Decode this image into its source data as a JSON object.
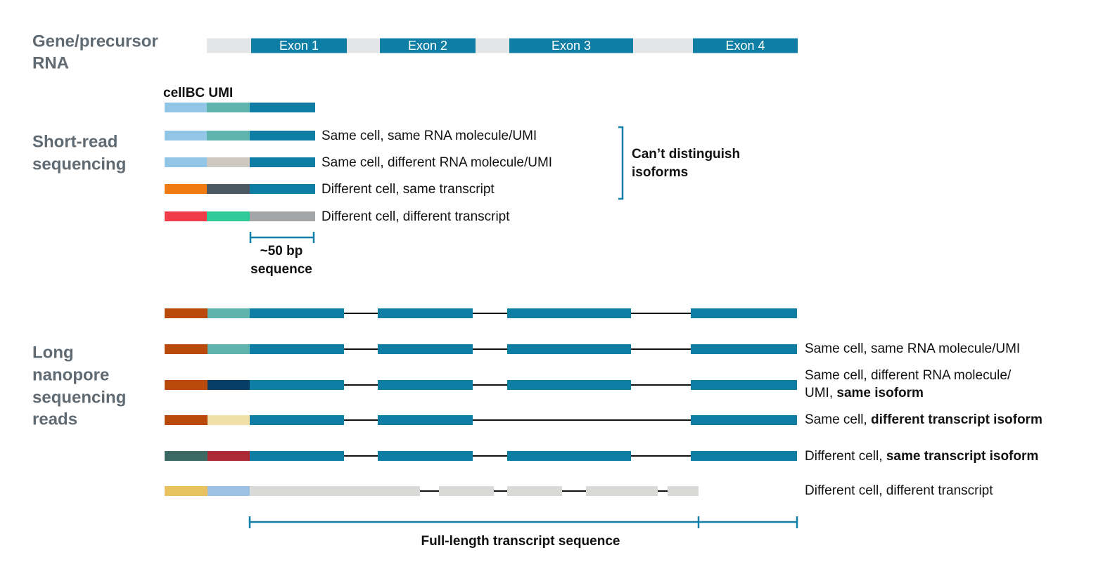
{
  "gene": {
    "title": [
      "Gene/precursor",
      "RNA"
    ],
    "exons": [
      "Exon 1",
      "Exon 2",
      "Exon 3",
      "Exon 4"
    ]
  },
  "short_read": {
    "title": [
      "Short-read",
      "sequencing"
    ],
    "header": "cellBC UMI",
    "rows": [
      "Same cell, same RNA molecule/UMI",
      "Same cell, different RNA molecule/UMI",
      "Different cell, same transcript",
      "Different cell, different transcript"
    ],
    "bracket_label": [
      "Can’t distinguish",
      "isoforms"
    ],
    "scale_label": [
      "~50 bp",
      "sequence"
    ]
  },
  "long_read": {
    "title": [
      "Long",
      "nanopore",
      "sequencing",
      "reads"
    ],
    "rows": [
      [
        [
          {
            "text": "Same cell, same RNA molecule/UMI",
            "bold": false
          }
        ]
      ],
      [
        [
          {
            "text": "Same cell, different RNA molecule/",
            "bold": false
          }
        ],
        [
          {
            "text": "UMI, ",
            "bold": false
          },
          {
            "text": "same isoform",
            "bold": true
          }
        ]
      ],
      [
        [
          {
            "text": "Same cell, ",
            "bold": false
          },
          {
            "text": "different transcript isoform",
            "bold": true
          }
        ]
      ],
      [
        [
          {
            "text": "Different cell, ",
            "bold": false
          },
          {
            "text": "same transcript isoform",
            "bold": true
          }
        ]
      ],
      [
        [
          {
            "text": "Different cell, different transcript",
            "bold": false
          }
        ]
      ]
    ],
    "scale_label": "Full-length transcript sequence"
  }
}
